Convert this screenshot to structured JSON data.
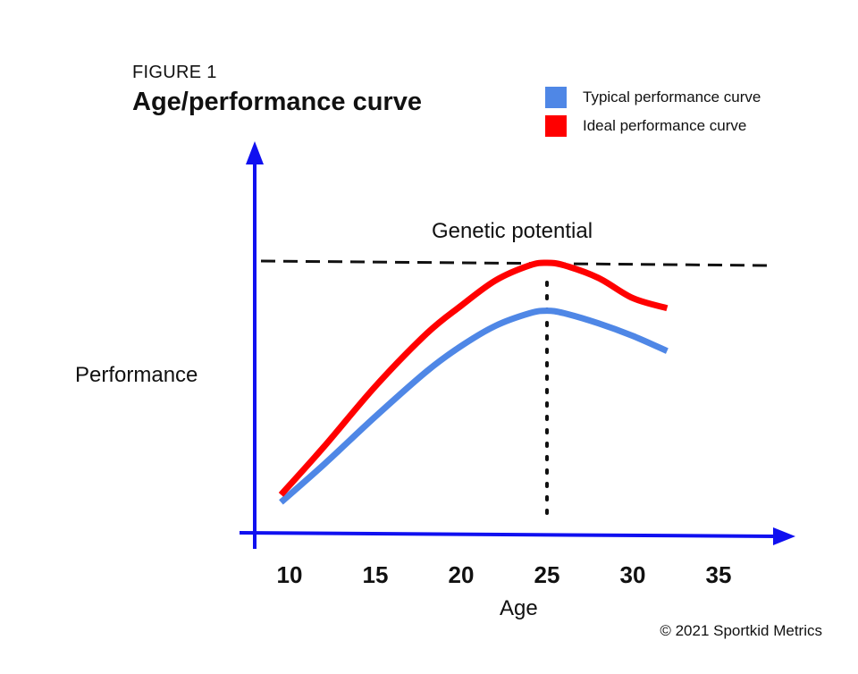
{
  "chart_data": {
    "type": "line",
    "kicker": "FIGURE 1",
    "title": "Age/performance curve",
    "xlabel": "Age",
    "ylabel": "Performance",
    "xticks": [
      10,
      15,
      20,
      25,
      30,
      35
    ],
    "xlim": [
      8,
      38
    ],
    "ylim": [
      0,
      100
    ],
    "genetic_potential": {
      "label": "Genetic potential",
      "value": 100
    },
    "peak_age": 25,
    "series": [
      {
        "name": "Typical performance curve",
        "color": "#4f87e6",
        "x": [
          9.5,
          12,
          15,
          18,
          20,
          22,
          24,
          25,
          26,
          28,
          30,
          32
        ],
        "y": [
          5,
          20,
          39,
          57,
          67,
          75,
          80,
          81,
          80,
          76,
          71,
          65
        ]
      },
      {
        "name": "Ideal performance curve",
        "color": "#ff0000",
        "x": [
          9.5,
          12,
          15,
          18,
          20,
          22,
          24,
          25,
          26,
          28,
          30,
          32
        ],
        "y": [
          8,
          27,
          51,
          72,
          83,
          93,
          99,
          100,
          99,
          94,
          86,
          82
        ]
      }
    ],
    "legend_position": "top-right",
    "grid": false
  },
  "copyright": "© 2021 Sportkid Metrics"
}
